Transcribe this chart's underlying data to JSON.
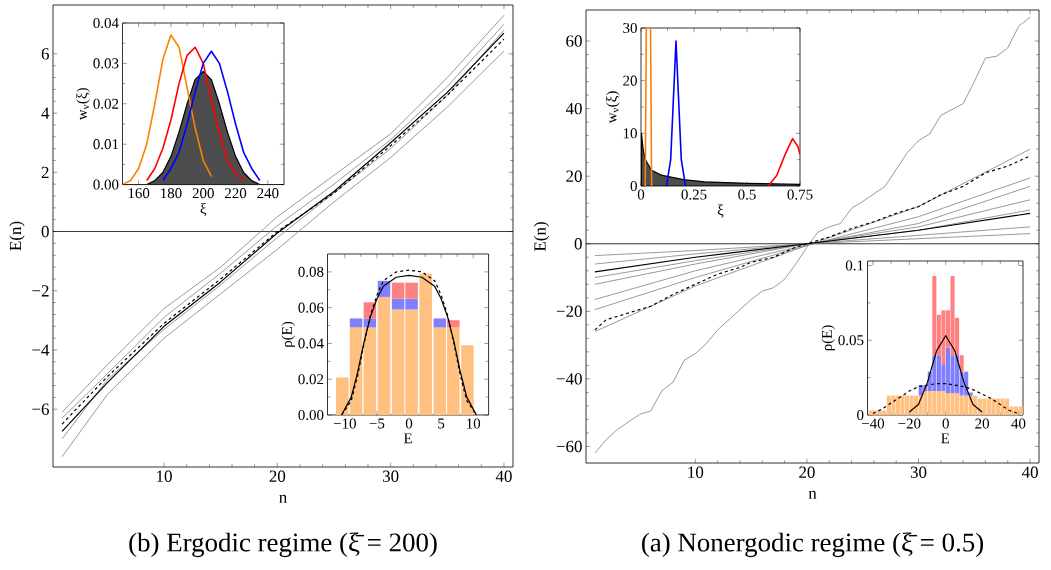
{
  "chart_data": [
    {
      "type": "line",
      "title": "(b) Ergodic regime (ξ̄ = 200)",
      "xlabel": "n",
      "ylabel": "E(n)",
      "x": [
        1,
        5,
        10,
        15,
        20,
        25,
        30,
        35,
        40
      ],
      "xlim": [
        0.2,
        40.8
      ],
      "ylim": [
        -7.95,
        7.65
      ],
      "xticks": [
        10,
        20,
        30,
        40
      ],
      "yticks": [
        {
          "value": -6,
          "label": "−6"
        },
        {
          "value": -4,
          "label": "−4"
        },
        {
          "value": -2,
          "label": "−2"
        },
        0,
        2,
        4,
        6
      ],
      "ref_lines": [
        {
          "axis": "y",
          "value": 0,
          "color": "#000000"
        }
      ],
      "series": [
        {
          "color": "#808080",
          "values": [
            -6.1,
            -4.5,
            -2.6,
            -1.2,
            0.5,
            1.9,
            3.3,
            5.2,
            7.3
          ]
        },
        {
          "color": "#808080",
          "values": [
            -7.6,
            -5.5,
            -3.6,
            -2.1,
            -0.6,
            1.0,
            2.5,
            4.2,
            6.1
          ]
        },
        {
          "color": "#808080",
          "values": [
            -7.0,
            -5.0,
            -3.3,
            -1.8,
            -0.2,
            1.3,
            2.8,
            4.6,
            6.8
          ]
        },
        {
          "color": "#808080",
          "values": [
            -6.3,
            -4.8,
            -2.9,
            -1.4,
            0.2,
            1.6,
            3.1,
            4.9,
            7.0
          ]
        },
        {
          "color": "#000000",
          "values": [
            -6.75,
            -5.1,
            -3.2,
            -1.7,
            -0.05,
            1.35,
            3.0,
            4.7,
            6.7
          ]
        },
        {
          "color": "#000000",
          "line_style": "dashed",
          "values": [
            -6.5,
            -4.9,
            -3.1,
            -1.6,
            0.0,
            1.3,
            2.9,
            4.6,
            6.5
          ]
        }
      ]
    },
    {
      "type": "line",
      "xlabel": "ξ",
      "ylabel": "w$_{ν}$(ξ)",
      "x": [
        150,
        155,
        160,
        165,
        170,
        175,
        180,
        185,
        190,
        195,
        200,
        205,
        210,
        215,
        220,
        225,
        230,
        235,
        240,
        245,
        250
      ],
      "xlim": [
        150,
        250
      ],
      "ylim": [
        0,
        0.04
      ],
      "xticks": [
        160,
        180,
        200,
        220,
        240
      ],
      "yticks": [
        {
          "value": 0,
          "label": "0.00"
        },
        0.01,
        0.02,
        0.03,
        0.04
      ],
      "series": [
        {
          "type": "area",
          "color": "#4d4d4d",
          "values": [
            0,
            0,
            0,
            0,
            0.001,
            0.003,
            0.007,
            0.013,
            0.02,
            0.026,
            0.028,
            0.026,
            0.02,
            0.013,
            0.007,
            0.003,
            0.001,
            0,
            0,
            0,
            0
          ]
        },
        {
          "color": "#ff8000",
          "values": [
            0,
            0.001,
            0.004,
            0.01,
            0.02,
            0.031,
            0.037,
            0.034,
            0.024,
            0.014,
            0.006,
            0.002,
            null,
            null,
            null,
            null,
            null,
            null,
            null,
            null,
            null
          ]
        },
        {
          "color": "#ff0000",
          "values": [
            null,
            null,
            null,
            0.001,
            0.004,
            0.009,
            0.016,
            0.025,
            0.032,
            0.034,
            0.03,
            0.021,
            0.013,
            0.006,
            0.003,
            0.001,
            null,
            null,
            null,
            null,
            null
          ]
        },
        {
          "color": "#0000ff",
          "values": [
            null,
            null,
            null,
            null,
            null,
            0.001,
            0.004,
            0.008,
            0.015,
            0.023,
            0.03,
            0.033,
            0.03,
            0.023,
            0.015,
            0.008,
            0.004,
            0.001,
            null,
            null,
            null
          ]
        }
      ]
    },
    {
      "type": "bar",
      "stacked": true,
      "xlabel": "E",
      "ylabel": "ρ(E)",
      "x": [
        -10.4,
        -8.25,
        -6.1,
        -3.9,
        -1.7,
        0.4,
        2.6,
        4.8,
        6.9,
        9.1
      ],
      "xlim": [
        -12.7,
        12.4
      ],
      "ylim": [
        0,
        0.09
      ],
      "xticks": [
        {
          "value": -10,
          "label": "−10"
        },
        {
          "value": -5,
          "label": "−5"
        },
        0,
        5,
        10
      ],
      "yticks": [
        {
          "value": 0,
          "label": "0.00"
        },
        0.02,
        0.04,
        0.06,
        0.08
      ],
      "series": [
        {
          "color": "#ffc080",
          "values": [
            0.021,
            0.049,
            0.049,
            0.066,
            0.059,
            0.059,
            0.079,
            0.049,
            0.049,
            0.039
          ]
        },
        {
          "color": "#8080ff",
          "values": [
            0,
            0.005,
            0.005,
            0.009,
            0.006,
            0.006,
            0,
            0.005,
            0,
            0
          ]
        },
        {
          "color": "#ff8080",
          "values": [
            0,
            0,
            0.009,
            0,
            0.009,
            0.009,
            0,
            0,
            0.004,
            0
          ]
        },
        {
          "type": "line",
          "color": "#000000",
          "x": [
            -10.5,
            -9,
            -8,
            -7,
            -6,
            -5,
            -4,
            -2,
            0,
            2,
            4,
            5,
            6,
            7,
            8,
            9,
            10.5
          ],
          "values": [
            0,
            0.01,
            0.024,
            0.041,
            0.055,
            0.065,
            0.072,
            0.077,
            0.078,
            0.077,
            0.072,
            0.065,
            0.055,
            0.041,
            0.024,
            0.01,
            0
          ]
        },
        {
          "type": "line",
          "color": "#000000",
          "line_style": "dashed",
          "x": [
            -10.5,
            -9,
            -8,
            -7,
            -6,
            -5,
            -4,
            -2,
            0,
            2,
            4,
            5,
            6,
            7,
            8,
            9,
            10.5
          ],
          "values": [
            0,
            0.008,
            0.022,
            0.04,
            0.056,
            0.067,
            0.075,
            0.08,
            0.081,
            0.08,
            0.075,
            0.067,
            0.056,
            0.04,
            0.022,
            0.008,
            0
          ]
        }
      ]
    },
    {
      "type": "line",
      "title": "(a) Nonergodic regime (ξ̄ = 0.5)",
      "xlabel": "n",
      "ylabel": "E(n)",
      "xlim": [
        0.2,
        40.8
      ],
      "ylim": [
        -64.9,
        69.2
      ],
      "xticks": [
        10,
        20,
        30,
        40
      ],
      "yticks": [
        {
          "value": -60,
          "label": "−60"
        },
        {
          "value": -40,
          "label": "−40"
        },
        {
          "value": -20,
          "label": "−20"
        },
        0,
        20,
        40,
        60
      ],
      "ref_lines": [
        {
          "axis": "y",
          "value": 0,
          "color": "#000000"
        }
      ],
      "series": [
        {
          "color": "#808080",
          "x": [
            1,
            2,
            3,
            5,
            6,
            7,
            8,
            9,
            10,
            11,
            12,
            15,
            16,
            17,
            18,
            19,
            20,
            21,
            22,
            23,
            24,
            25,
            27,
            28,
            29,
            30,
            31,
            32,
            34,
            35,
            36,
            37,
            38,
            39,
            40
          ],
          "values": [
            -62,
            -58,
            -55,
            -50.5,
            -49.5,
            -43.5,
            -41,
            -34.5,
            -32.5,
            -29.5,
            -25.5,
            -16.5,
            -14,
            -13,
            -10.5,
            -6,
            -1,
            3.5,
            5,
            6,
            10.5,
            12.5,
            17,
            22,
            27,
            30.5,
            32.5,
            38,
            41.5,
            48,
            55,
            55.5,
            58,
            64.5,
            67
          ]
        },
        {
          "color": "#808080",
          "x": [
            1,
            10,
            20,
            30,
            40
          ],
          "values": [
            -26,
            -12.5,
            -0.5,
            11,
            28
          ]
        },
        {
          "color": "#808080",
          "x": [
            1,
            10,
            20,
            30,
            40
          ],
          "values": [
            -19.5,
            -10,
            -0.5,
            8,
            19.5
          ]
        },
        {
          "color": "#808080",
          "x": [
            1,
            10,
            20,
            30,
            40
          ],
          "values": [
            -16.5,
            -8,
            -0.3,
            6,
            17
          ]
        },
        {
          "color": "#808080",
          "x": [
            1,
            10,
            20,
            30,
            40
          ],
          "values": [
            -12,
            -6,
            0,
            5,
            13
          ]
        },
        {
          "color": "#808080",
          "x": [
            1,
            10,
            20,
            30,
            40
          ],
          "values": [
            -10,
            -5,
            0,
            4,
            10
          ]
        },
        {
          "color": "#808080",
          "x": [
            1,
            10,
            20,
            30,
            40
          ],
          "values": [
            -6,
            -3,
            0,
            2.5,
            5
          ]
        },
        {
          "color": "#808080",
          "x": [
            1,
            10,
            20,
            30,
            40
          ],
          "values": [
            -3.5,
            -2,
            0,
            1.5,
            3
          ]
        },
        {
          "color": "#000000",
          "x": [
            1,
            10,
            20,
            30,
            40
          ],
          "values": [
            -8.3,
            -4,
            0,
            4,
            9
          ]
        },
        {
          "color": "#000000",
          "line_style": "dashed",
          "x": [
            1,
            2,
            3,
            5,
            6,
            8,
            10,
            12,
            14,
            15,
            17,
            19,
            20,
            22,
            24,
            26,
            28,
            30,
            32,
            34,
            36,
            38,
            40
          ],
          "values": [
            -25.5,
            -22.5,
            -21.5,
            -19.5,
            -18.5,
            -15,
            -12,
            -9,
            -7,
            -5.5,
            -4,
            -1,
            0,
            2,
            4.5,
            6.5,
            9,
            11,
            14.5,
            17,
            21,
            23,
            26
          ]
        }
      ]
    },
    {
      "type": "line",
      "xlabel": "ξ",
      "ylabel": "w$_{ν}$(ξ)",
      "xlim": [
        0,
        0.75
      ],
      "ylim": [
        0,
        30
      ],
      "xticks": [
        0,
        0.25,
        0.5,
        0.75
      ],
      "yticks": [
        0,
        10,
        20,
        30
      ],
      "series": [
        {
          "type": "area",
          "color": "#4d4d4d",
          "x": [
            0.002,
            0.01,
            0.02,
            0.05,
            0.1,
            0.2,
            0.3,
            0.5,
            0.75
          ],
          "values": [
            10,
            7,
            5,
            3,
            2,
            1.2,
            0.8,
            0.5,
            0.3
          ]
        },
        {
          "color": "#ff8000",
          "x": [
            0.02,
            0.025,
            0.035,
            0.045,
            0.05
          ],
          "values": [
            0,
            30,
            null,
            30,
            0
          ]
        },
        {
          "color": "#0000ff",
          "x": [
            0.12,
            0.14,
            0.15,
            0.165,
            0.18,
            0.19,
            0.21
          ],
          "values": [
            0,
            5,
            14,
            27.5,
            14,
            5,
            0
          ]
        },
        {
          "color": "#ff0000",
          "x": [
            0.6,
            0.64,
            0.68,
            0.715,
            0.74,
            0.75
          ],
          "values": [
            0,
            2,
            6,
            9,
            7.5,
            6
          ]
        }
      ]
    },
    {
      "type": "bar",
      "stacked": true,
      "xlabel": "E",
      "ylabel": "ρ(E)",
      "x": [
        -41.25,
        -38.75,
        -36.25,
        -33.75,
        -31.25,
        -28.75,
        -26.25,
        -23.75,
        -21.25,
        -18.75,
        -16.25,
        -13.75,
        -11.25,
        -8.75,
        -6.25,
        -3.75,
        -1.25,
        1.25,
        3.75,
        6.25,
        8.75,
        11.25,
        13.75,
        16.25,
        18.75,
        21.25,
        23.75,
        26.25,
        28.75,
        31.25,
        33.75,
        36.25,
        38.75,
        41.25
      ],
      "xlim": [
        -43,
        42.5
      ],
      "ylim": [
        0,
        0.103
      ],
      "xticks": [
        {
          "value": -40,
          "label": "−40"
        },
        {
          "value": -20,
          "label": "−20"
        },
        0,
        20,
        40
      ],
      "yticks": [
        0,
        0.05,
        0.1
      ],
      "series": [
        {
          "color": "#ffc080",
          "values": [
            0.003,
            0.003,
            0.003,
            0.003,
            0.013,
            0.013,
            0.013,
            0.013,
            0.013,
            0.013,
            0.013,
            0.013,
            0.016,
            0.016,
            0.016,
            0.016,
            0.016,
            0.0145,
            0.0145,
            0.0145,
            0.013,
            0.013,
            0.013,
            0.013,
            0.011,
            0.011,
            0.011,
            0.011,
            0.011,
            0.011,
            0.011,
            0.0057,
            0.0057,
            0.0057
          ]
        },
        {
          "color": "#8080ff",
          "values": [
            0,
            0,
            0,
            0,
            0,
            0,
            0,
            0,
            0,
            0,
            0,
            0.007,
            0.004,
            0.013,
            0.024,
            0.024,
            0.018,
            0.0305,
            0.0255,
            0.0255,
            0.016,
            0.016,
            0.002,
            0,
            0,
            0,
            0,
            0,
            0,
            0,
            0,
            0,
            0,
            0
          ]
        },
        {
          "color": "#ff8080",
          "values": [
            0,
            0,
            0,
            0,
            0,
            0,
            0,
            0,
            0,
            0,
            0,
            0,
            0,
            0,
            0.053,
            0.027,
            0.036,
            0.025,
            0.053,
            0.025,
            0.011,
            0,
            0,
            0,
            0,
            0,
            0,
            0,
            0,
            0,
            0,
            0,
            0,
            0
          ]
        },
        {
          "type": "line",
          "color": "#000000",
          "x": [
            -20,
            -15,
            -10,
            -5,
            0,
            5,
            10,
            15,
            20
          ],
          "values": [
            0.002,
            0.007,
            0.022,
            0.043,
            0.053,
            0.043,
            0.022,
            0.007,
            0.002
          ]
        },
        {
          "type": "line",
          "color": "#000000",
          "line_style": "dashed",
          "x": [
            -40,
            -35,
            -30,
            -25,
            -20,
            -15,
            -10,
            -5,
            0,
            5,
            10,
            15,
            20,
            25,
            30,
            35,
            40
          ],
          "values": [
            0.001,
            0.004,
            0.008,
            0.012,
            0.016,
            0.019,
            0.02,
            0.021,
            0.021,
            0.02,
            0.019,
            0.017,
            0.014,
            0.011,
            0.007,
            0.003,
            0.001
          ]
        }
      ]
    }
  ]
}
